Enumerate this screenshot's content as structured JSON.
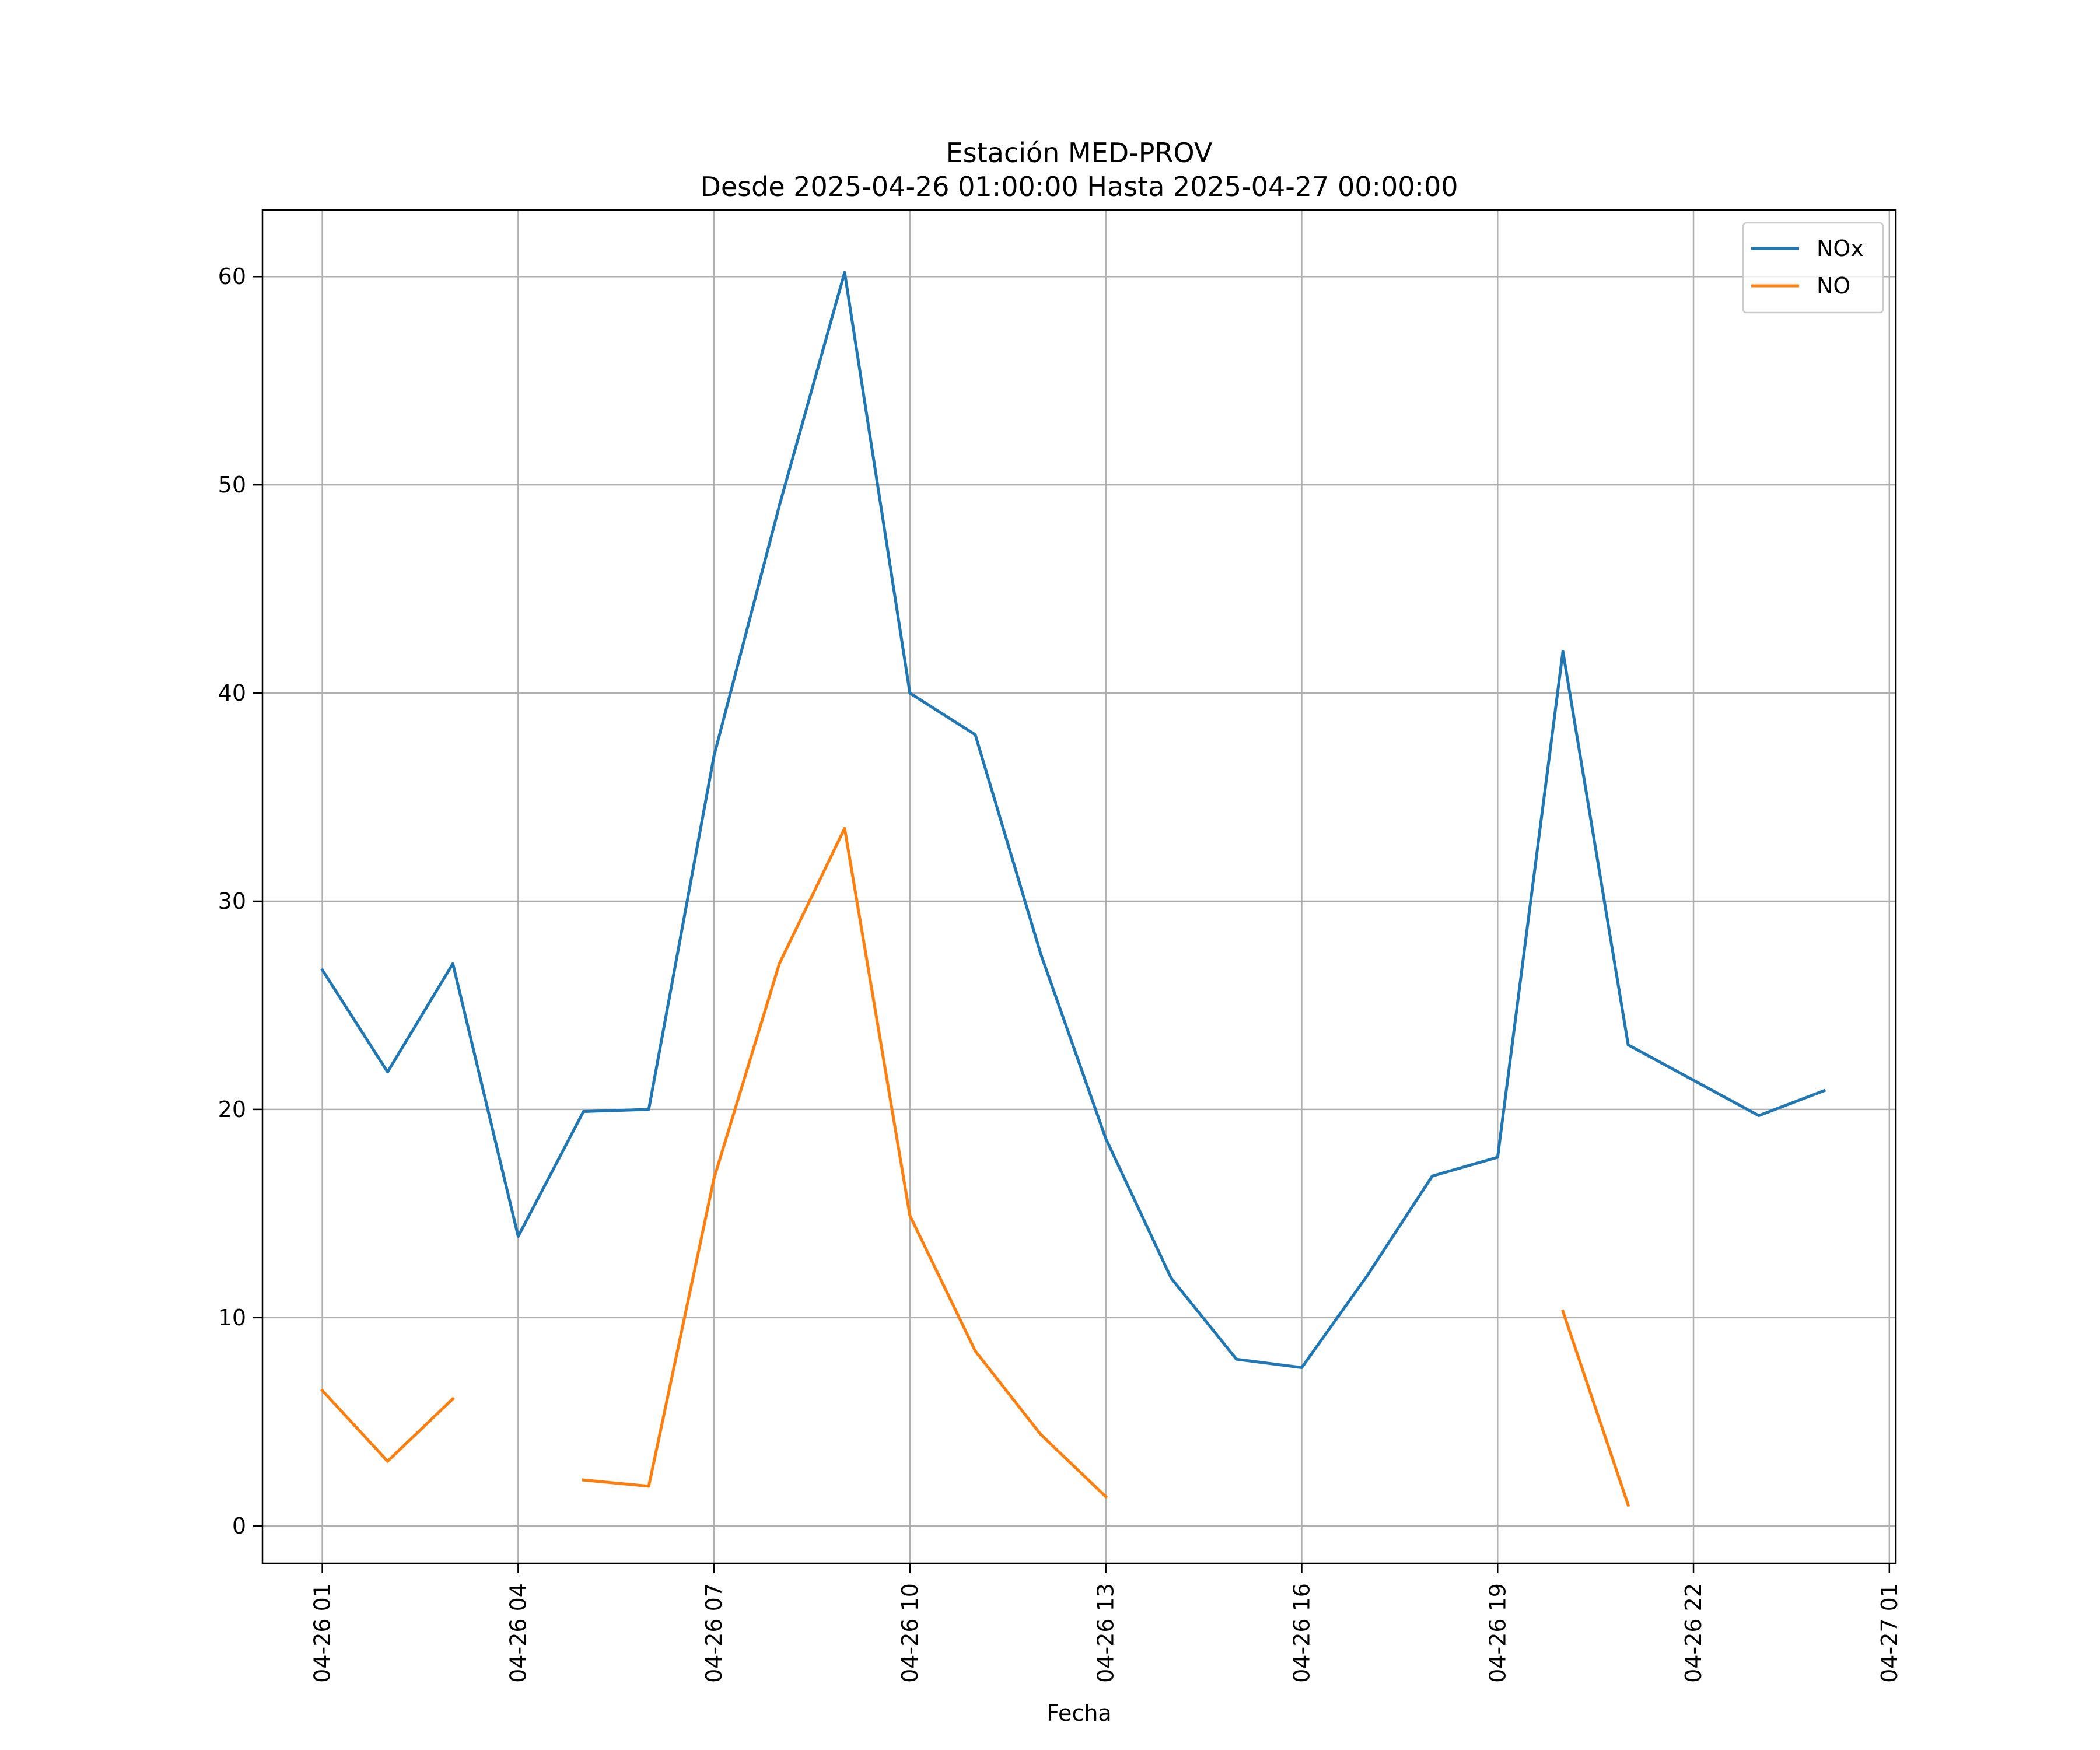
{
  "chart_data": {
    "type": "line",
    "title": "Estación MED-PROV",
    "subtitle": "Desde 2025-04-26 01:00:00 Hasta 2025-04-27 00:00:00",
    "xlabel": "Fecha",
    "ylabel": "",
    "x": [
      "2025-04-26 01:00",
      "2025-04-26 02:00",
      "2025-04-26 03:00",
      "2025-04-26 04:00",
      "2025-04-26 05:00",
      "2025-04-26 06:00",
      "2025-04-26 07:00",
      "2025-04-26 08:00",
      "2025-04-26 09:00",
      "2025-04-26 10:00",
      "2025-04-26 11:00",
      "2025-04-26 12:00",
      "2025-04-26 13:00",
      "2025-04-26 14:00",
      "2025-04-26 15:00",
      "2025-04-26 16:00",
      "2025-04-26 17:00",
      "2025-04-26 18:00",
      "2025-04-26 19:00",
      "2025-04-26 20:00",
      "2025-04-26 21:00",
      "2025-04-26 22:00",
      "2025-04-26 23:00",
      "2025-04-27 00:00"
    ],
    "series": [
      {
        "name": "NOx",
        "color": "#1f77b4",
        "values": [
          26.7,
          21.8,
          27.0,
          13.9,
          19.9,
          20.0,
          37.0,
          49.0,
          60.2,
          40.0,
          38.0,
          27.5,
          18.6,
          11.9,
          8.0,
          7.6,
          12.0,
          16.8,
          17.7,
          42.0,
          23.1,
          21.4,
          19.7,
          20.9
        ]
      },
      {
        "name": "NO",
        "color": "#ff7f0e",
        "values": [
          6.5,
          3.1,
          6.1,
          null,
          2.2,
          1.9,
          16.7,
          27.0,
          33.5,
          14.9,
          8.4,
          4.4,
          1.4,
          null,
          null,
          null,
          null,
          null,
          null,
          10.3,
          1.0,
          null,
          null,
          null
        ]
      }
    ],
    "xticks": [
      "04-26 01",
      "04-26 04",
      "04-26 07",
      "04-26 10",
      "04-26 13",
      "04-26 16",
      "04-26 19",
      "04-26 22",
      "04-27 01"
    ],
    "yticks": [
      "0",
      "10",
      "20",
      "30",
      "40",
      "50",
      "60"
    ],
    "ylim": [
      -1.8,
      63.2
    ],
    "xlim": [
      "2025-04-26 00:05",
      "2025-04-27 01:06"
    ],
    "grid": true,
    "legend_position": "top-right"
  }
}
